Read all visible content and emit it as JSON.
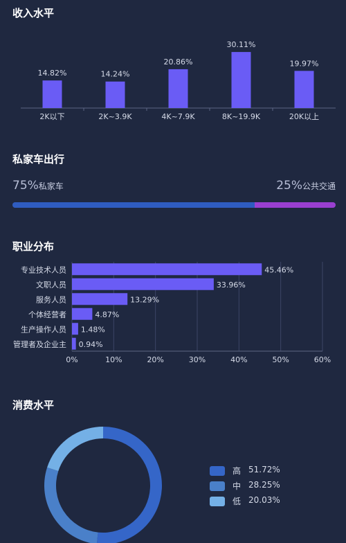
{
  "income": {
    "title": "收入水平"
  },
  "car": {
    "title": "私家车出行",
    "private_pct": "75%",
    "private_label": "私家车",
    "public_pct": "25%",
    "public_label": "公共交通",
    "private_share": 75,
    "public_share": 25,
    "colors": {
      "private": "#2f5cc0",
      "public": "#9a3fd1"
    }
  },
  "occupation": {
    "title": "职业分布"
  },
  "consumption": {
    "title": "消费水平"
  },
  "chart_data": [
    {
      "type": "bar",
      "categories": [
        "2K以下",
        "2K~3.9K",
        "4K~7.9K",
        "8K~19.9K",
        "20K以上"
      ],
      "values": [
        14.82,
        14.24,
        20.86,
        30.11,
        19.97
      ],
      "value_labels": [
        "14.82%",
        "14.24%",
        "20.86%",
        "30.11%",
        "19.97%"
      ],
      "color": "#6a5cf5",
      "ylim": [
        0,
        32
      ]
    },
    {
      "type": "bar",
      "orientation": "horizontal",
      "categories": [
        "专业技术人员",
        "文职人员",
        "服务人员",
        "个体经营者",
        "生产操作人员",
        "管理者及企业主"
      ],
      "values": [
        45.46,
        33.96,
        13.29,
        4.87,
        1.48,
        0.94
      ],
      "value_labels": [
        "45.46%",
        "33.96%",
        "13.29%",
        "4.87%",
        "1.48%",
        "0.94%"
      ],
      "xticks": [
        "0%",
        "10%",
        "20%",
        "30%",
        "40%",
        "50%",
        "60%"
      ],
      "xlim": [
        0,
        60
      ],
      "grid": true,
      "color": "#6a5cf5"
    },
    {
      "type": "pie",
      "variant": "donut",
      "categories": [
        "高",
        "中",
        "低"
      ],
      "values": [
        51.72,
        28.25,
        20.03
      ],
      "value_labels": [
        "51.72%",
        "28.25%",
        "20.03%"
      ],
      "colors": [
        "#3566c8",
        "#4a80c9",
        "#74b0e6"
      ],
      "legend": "right"
    }
  ]
}
